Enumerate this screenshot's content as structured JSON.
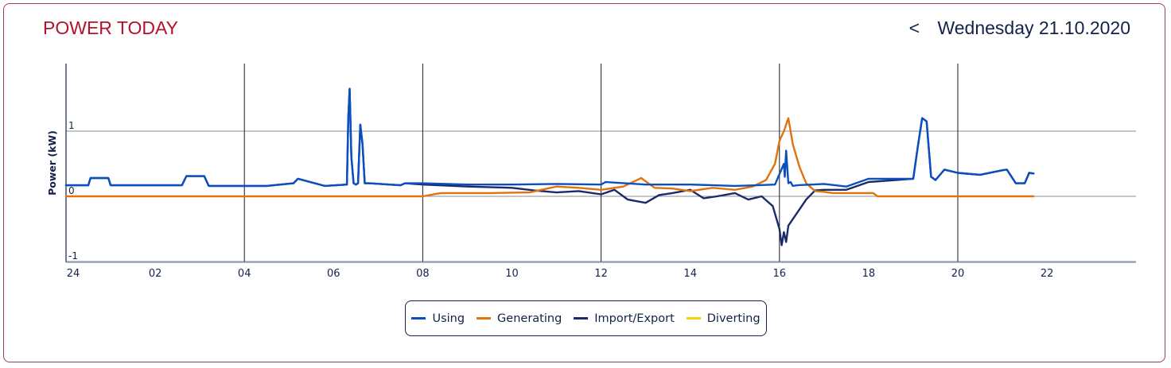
{
  "header": {
    "title": "POWER TODAY",
    "prev_symbol": "<",
    "date": "Wednesday 21.10.2020"
  },
  "colors": {
    "using": "#0a4fc2",
    "generating": "#e0730e",
    "import_export": "#1c2a6a",
    "diverting": "#f2d400",
    "title": "#b3112c"
  },
  "chart_data": {
    "type": "line",
    "title": "",
    "xlabel": "",
    "ylabel": "Power (kW)",
    "xlim": [
      0,
      24
    ],
    "ylim": [
      -1,
      2
    ],
    "x_ticks": [
      0,
      2,
      4,
      6,
      8,
      10,
      12,
      14,
      16,
      18,
      20,
      22
    ],
    "x_tick_labels": [
      "24",
      "02",
      "04",
      "06",
      "08",
      "10",
      "12",
      "14",
      "16",
      "18",
      "20",
      "22"
    ],
    "y_ticks": [
      -1,
      0,
      1
    ],
    "y_tick_labels": [
      "-1",
      "0",
      "1"
    ],
    "grid": true,
    "legend": "bottom-center",
    "series": [
      {
        "name": "Using",
        "color": "#0a4fc2",
        "x": [
          0,
          0.5,
          0.55,
          0.95,
          1.0,
          2.6,
          2.7,
          3.1,
          3.2,
          4.5,
          5.1,
          5.2,
          5.8,
          6.3,
          6.33,
          6.36,
          6.4,
          6.45,
          6.5,
          6.55,
          6.6,
          6.65,
          6.7,
          6.8,
          7.5,
          7.6,
          8,
          9,
          10,
          11,
          12,
          12.1,
          13,
          14,
          15,
          15.5,
          15.9,
          16.1,
          16.12,
          16.15,
          16.2,
          16.25,
          16.3,
          16.4,
          17,
          17.5,
          18,
          19,
          19.1,
          19.2,
          19.3,
          19.4,
          19.5,
          19.7,
          20,
          20.5,
          21,
          21.1,
          21.3,
          21.5,
          21.6,
          21.7
        ],
        "y": [
          0.17,
          0.17,
          0.28,
          0.28,
          0.17,
          0.17,
          0.31,
          0.31,
          0.16,
          0.16,
          0.2,
          0.27,
          0.16,
          0.18,
          1.2,
          1.65,
          0.6,
          0.2,
          0.18,
          0.2,
          1.1,
          0.8,
          0.2,
          0.2,
          0.17,
          0.2,
          0.2,
          0.18,
          0.18,
          0.19,
          0.18,
          0.22,
          0.18,
          0.18,
          0.16,
          0.17,
          0.18,
          0.5,
          0.3,
          0.7,
          0.2,
          0.22,
          0.16,
          0.17,
          0.19,
          0.15,
          0.27,
          0.27,
          0.75,
          1.2,
          1.15,
          0.3,
          0.25,
          0.41,
          0.36,
          0.33,
          0.4,
          0.41,
          0.2,
          0.2,
          0.36,
          0.35
        ]
      },
      {
        "name": "Generating",
        "color": "#e0730e",
        "x": [
          0,
          8,
          8.4,
          9.5,
          10.4,
          11,
          11.5,
          12,
          12.5,
          12.9,
          13.2,
          13.6,
          14,
          14.5,
          15,
          15.4,
          15.7,
          15.9,
          16.0,
          16.1,
          16.2,
          16.3,
          16.45,
          16.6,
          16.8,
          17.0,
          17.2,
          18.1,
          18.2,
          20,
          21.7
        ],
        "y": [
          0,
          0,
          0.05,
          0.05,
          0.06,
          0.15,
          0.13,
          0.1,
          0.15,
          0.28,
          0.13,
          0.12,
          0.08,
          0.13,
          0.1,
          0.15,
          0.25,
          0.5,
          0.85,
          1.0,
          1.2,
          0.8,
          0.45,
          0.2,
          0.08,
          0.07,
          0.05,
          0.05,
          0,
          0,
          0
        ]
      },
      {
        "name": "Import/Export",
        "color": "#1c2a6a",
        "x": [
          0,
          0.5,
          0.55,
          0.95,
          1.0,
          2.6,
          2.7,
          3.1,
          3.2,
          4.5,
          5.1,
          5.2,
          5.8,
          6.3,
          6.33,
          6.36,
          6.4,
          6.45,
          6.5,
          6.55,
          6.6,
          6.65,
          6.7,
          6.8,
          7.5,
          7.6,
          8,
          9,
          10,
          10.5,
          11,
          11.5,
          12,
          12.3,
          12.6,
          13,
          13.3,
          13.6,
          14,
          14.3,
          14.6,
          15,
          15.3,
          15.6,
          15.85,
          16.0,
          16.05,
          16.1,
          16.15,
          16.2,
          16.3,
          16.45,
          16.6,
          16.8,
          17.0,
          17.5,
          18,
          19,
          19.1,
          19.2,
          19.3,
          19.4,
          19.5,
          19.7,
          20,
          20.5,
          21,
          21.1,
          21.3,
          21.5,
          21.6,
          21.7
        ],
        "y": [
          0.17,
          0.17,
          0.28,
          0.28,
          0.17,
          0.17,
          0.31,
          0.31,
          0.16,
          0.16,
          0.2,
          0.27,
          0.16,
          0.18,
          1.2,
          1.65,
          0.6,
          0.2,
          0.18,
          0.2,
          1.1,
          0.8,
          0.2,
          0.2,
          0.17,
          0.2,
          0.18,
          0.15,
          0.13,
          0.09,
          0.06,
          0.08,
          0.03,
          0.1,
          -0.05,
          -0.1,
          0.02,
          0.05,
          0.1,
          -0.03,
          0.0,
          0.05,
          -0.05,
          0.0,
          -0.15,
          -0.5,
          -0.75,
          -0.55,
          -0.7,
          -0.45,
          -0.35,
          -0.2,
          -0.05,
          0.09,
          0.1,
          0.1,
          0.22,
          0.27,
          0.75,
          1.2,
          1.15,
          0.3,
          0.25,
          0.41,
          0.36,
          0.33,
          0.4,
          0.41,
          0.2,
          0.2,
          0.36,
          0.35
        ]
      },
      {
        "name": "Diverting",
        "color": "#f2d400",
        "x": [],
        "y": []
      }
    ]
  }
}
